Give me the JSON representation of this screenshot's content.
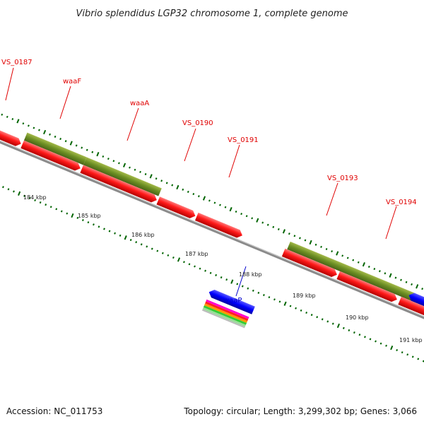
{
  "title": "Vibrio splendidus LGP32 chromosome 1, complete genome",
  "footer": {
    "accession": "Accession: NC_011753",
    "summary": "Topology: circular; Length: 3,299,302 bp; Genes: 3,066"
  },
  "colors": {
    "cds": "#ff0000",
    "operon": "#6b8e23",
    "reverse_strand": "#0000ff",
    "tick": "#006400",
    "backbone": "#808080",
    "label_red": "#e00000",
    "label_blue": "#0000cc"
  },
  "labels": {
    "vs0187": "VS_0187",
    "waaf": "waaF",
    "waaa": "waaA",
    "vs0190": "VS_0190",
    "vs0191": "VS_0191",
    "vs0193": "VS_0193",
    "vs0194": "VS_0194",
    "waap": "waaP"
  },
  "kbp_ticks": [
    "184 kbp",
    "185 kbp",
    "186 kbp",
    "187 kbp",
    "188 kbp",
    "189 kbp",
    "190 kbp",
    "191 kbp"
  ]
}
